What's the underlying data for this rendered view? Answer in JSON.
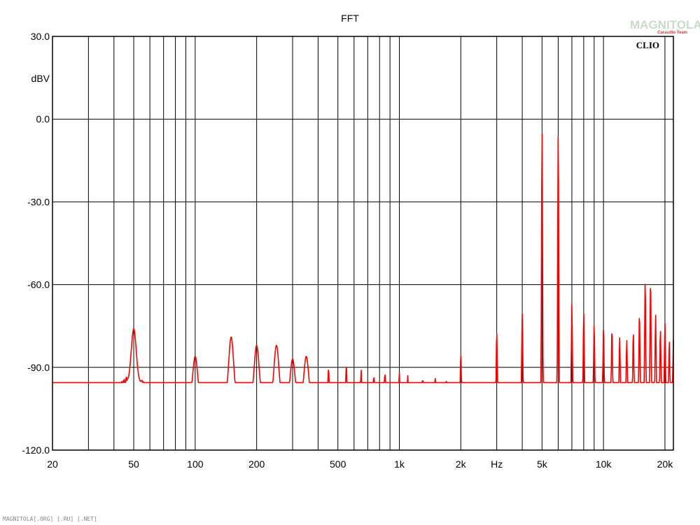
{
  "colors": {
    "trace": "#ff0000",
    "grid": "#000000",
    "background": "#ffffff",
    "brand": "#c8dcc8",
    "brand_accent": "#d04040"
  },
  "watermark": {
    "brand": "MAGNITOLA",
    "sub": "Caraudio Team",
    "footer": "MAGNITOLA[.ORG] [.RU] [.NET]"
  },
  "badge": "CLIO",
  "chart_data": {
    "type": "line",
    "title": "FFT",
    "ylabel": "dBV",
    "xlabel": "Hz",
    "xscale": "log",
    "xlim": [
      20,
      22000
    ],
    "ylim": [
      -120,
      30
    ],
    "grid": true,
    "ytick_values": [
      30,
      0,
      -30,
      -60,
      -90,
      -120
    ],
    "ytick_labels": [
      "30.0",
      "0.0",
      "-30.0",
      "-60.0",
      "-90.0",
      "-120.0"
    ],
    "xtick_values": [
      20,
      50,
      100,
      200,
      500,
      1000,
      2000,
      5000,
      10000,
      20000
    ],
    "xtick_labels": [
      "20",
      "50",
      "100",
      "200",
      "500",
      "1k",
      "2k",
      "5k",
      "10k",
      "20k"
    ],
    "xunit_position": 3000,
    "x_gridlines": [
      30,
      40,
      50,
      60,
      70,
      80,
      90,
      100,
      200,
      300,
      400,
      500,
      600,
      700,
      800,
      900,
      1000,
      2000,
      3000,
      4000,
      5000,
      6000,
      7000,
      8000,
      9000,
      10000,
      20000
    ],
    "series": [
      {
        "color": "#ff0000",
        "noise_floor": [
          [
            20,
            -101
          ],
          [
            24,
            -100
          ],
          [
            26,
            -99
          ],
          [
            30,
            -101
          ],
          [
            35,
            -100
          ],
          [
            40,
            -100
          ],
          [
            45,
            -95
          ],
          [
            55,
            -96
          ],
          [
            60,
            -101
          ],
          [
            70,
            -103
          ],
          [
            80,
            -103
          ],
          [
            90,
            -103
          ],
          [
            110,
            -102
          ],
          [
            150,
            -102
          ],
          [
            200,
            -102
          ],
          [
            300,
            -103
          ],
          [
            400,
            -104
          ],
          [
            600,
            -104
          ],
          [
            800,
            -104
          ],
          [
            1000,
            -104
          ],
          [
            1500,
            -104
          ],
          [
            2000,
            -104
          ],
          [
            3000,
            -104
          ],
          [
            5000,
            -103
          ],
          [
            8000,
            -104
          ],
          [
            10000,
            -103
          ],
          [
            13000,
            -103
          ],
          [
            16000,
            -103
          ],
          [
            19000,
            -103
          ],
          [
            20500,
            -106
          ],
          [
            21500,
            -107
          ]
        ],
        "peaks": [
          [
            28,
            -97
          ],
          [
            35,
            -96
          ],
          [
            50,
            -76
          ],
          [
            60,
            -98
          ],
          [
            70,
            -98
          ],
          [
            80,
            -101
          ],
          [
            90,
            -99
          ],
          [
            100,
            -86
          ],
          [
            150,
            -79
          ],
          [
            200,
            -82
          ],
          [
            250,
            -82
          ],
          [
            300,
            -87
          ],
          [
            350,
            -86
          ],
          [
            450,
            -90
          ],
          [
            550,
            -89
          ],
          [
            650,
            -91
          ],
          [
            750,
            -93
          ],
          [
            850,
            -92
          ],
          [
            1000,
            -92
          ],
          [
            1100,
            -93
          ],
          [
            1300,
            -94
          ],
          [
            1500,
            -94
          ],
          [
            1700,
            -95
          ],
          [
            2000,
            -85
          ],
          [
            3000,
            -77
          ],
          [
            4000,
            -70
          ],
          [
            5000,
            -4
          ],
          [
            6000,
            -4
          ],
          [
            7000,
            -67
          ],
          [
            8000,
            -70
          ],
          [
            9000,
            -74
          ],
          [
            10000,
            -75
          ],
          [
            11000,
            -76
          ],
          [
            12000,
            -79
          ],
          [
            13000,
            -80
          ],
          [
            14000,
            -77
          ],
          [
            15000,
            -70
          ],
          [
            16000,
            -58
          ],
          [
            17000,
            -58
          ],
          [
            18000,
            -71
          ],
          [
            19000,
            -76
          ],
          [
            20000,
            -74
          ],
          [
            21000,
            -80
          ],
          [
            22000,
            -80
          ]
        ]
      }
    ]
  }
}
